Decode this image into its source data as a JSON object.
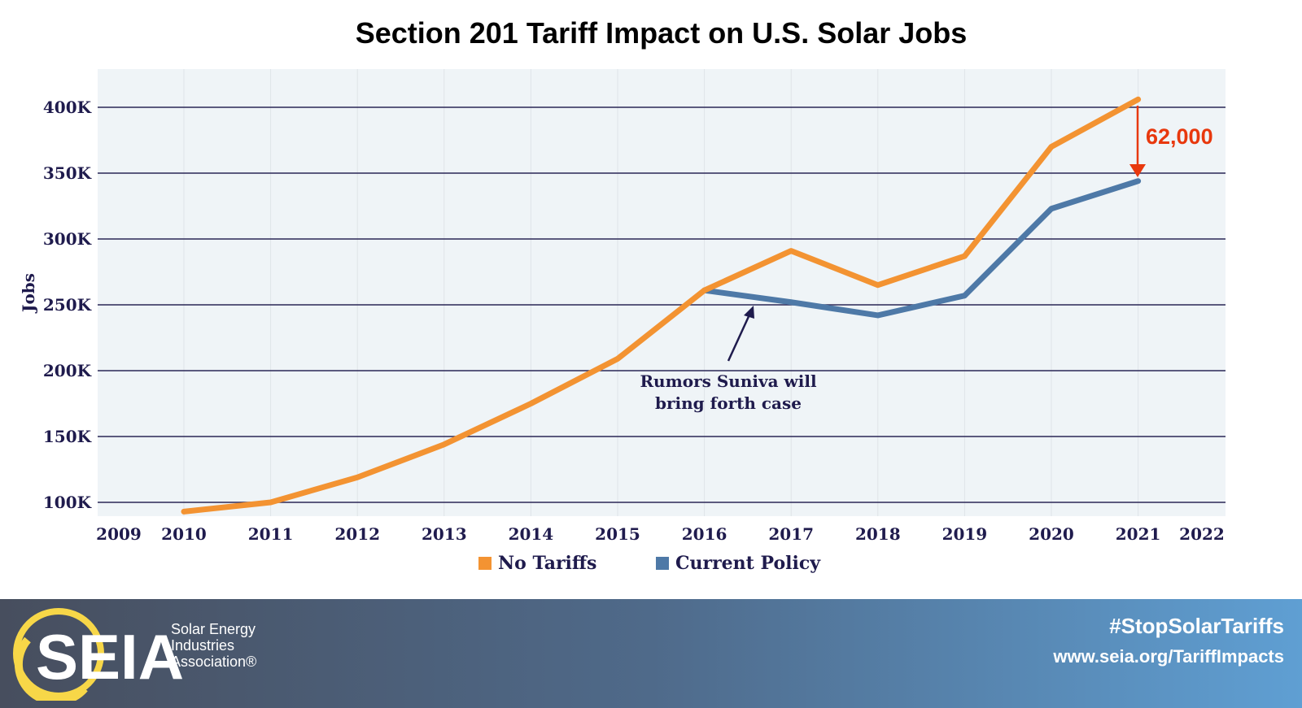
{
  "chart_data": {
    "type": "line",
    "title": "Section 201 Tariff Impact on U.S. Solar Jobs",
    "ylabel": "Jobs",
    "xlabel": "",
    "x_ticks": [
      "2009",
      "2010",
      "2011",
      "2012",
      "2013",
      "2014",
      "2015",
      "2016",
      "2017",
      "2018",
      "2019",
      "2020",
      "2021",
      "2022"
    ],
    "y_ticks": [
      "100K",
      "150K",
      "200K",
      "250K",
      "300K",
      "350K",
      "400K"
    ],
    "ylim": [
      93,
      420
    ],
    "grid": "horizontal",
    "legend_position": "bottom",
    "series": [
      {
        "name": "No Tariffs",
        "color": "#f39332",
        "x": [
          2010,
          2011,
          2012,
          2013,
          2014,
          2015,
          2016,
          2017,
          2018,
          2019,
          2020,
          2021
        ],
        "values": [
          93,
          100,
          119,
          144,
          175,
          209,
          261,
          291,
          265,
          287,
          370,
          406
        ]
      },
      {
        "name": "Current Policy",
        "color": "#4e79a7",
        "x": [
          2016,
          2017,
          2018,
          2019,
          2020,
          2021
        ],
        "values": [
          261,
          252,
          242,
          257,
          323,
          344
        ]
      }
    ],
    "annotations": [
      {
        "text": "Rumors Suniva will bring forth case",
        "x": 2016.5
      },
      {
        "text": "62,000",
        "color": "#e8380d",
        "x": 2021
      }
    ]
  },
  "footer": {
    "logo_text": "SEIA",
    "org_name_lines": [
      "Solar Energy",
      "Industries",
      "Association®"
    ],
    "hashtag": "#StopSolarTariffs",
    "url": "www.seia.org/TariffImpacts"
  }
}
